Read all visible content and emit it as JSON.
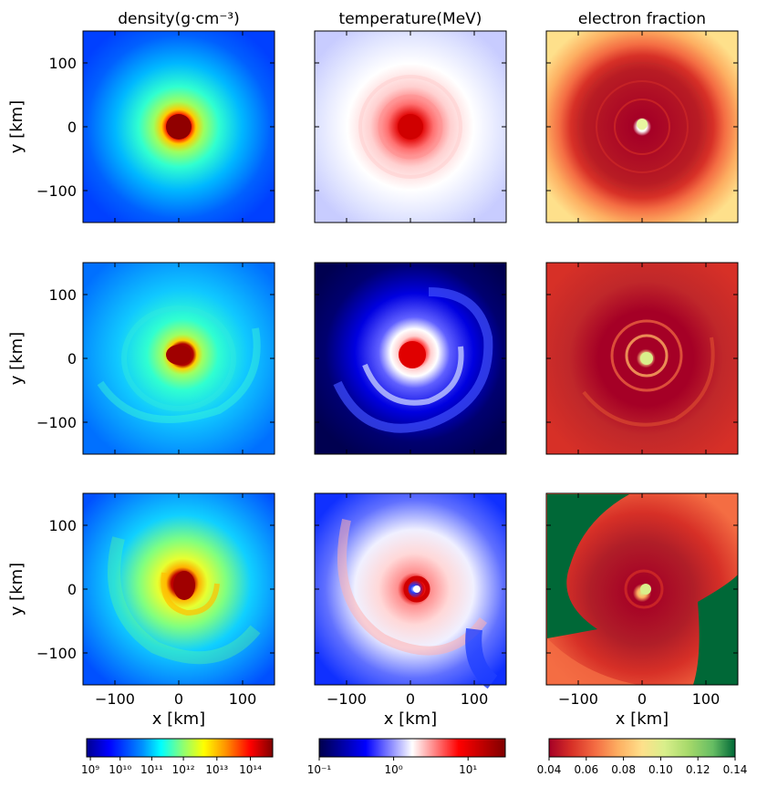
{
  "chart_data": {
    "type": "heatmap",
    "columns": [
      {
        "title": "density(g·cm⁻³)",
        "colorbar_ticks": [
          "10⁹",
          "10¹⁰",
          "10¹¹",
          "10¹²",
          "10¹³",
          "10¹⁴"
        ],
        "colorbar_scale": "log"
      },
      {
        "title": "temperature(MeV)",
        "colorbar_ticks": [
          "10⁻¹",
          "10⁰",
          "10¹"
        ],
        "colorbar_scale": "log"
      },
      {
        "title": "electron fraction",
        "colorbar_ticks": [
          "0.04",
          "0.06",
          "0.08",
          "0.10",
          "0.12",
          "0.14"
        ],
        "colorbar_scale": "linear"
      }
    ],
    "rows": 3,
    "xlabel": "x [km]",
    "ylabel": "y [km]",
    "xlim": [
      -150,
      150
    ],
    "ylim": [
      -150,
      150
    ],
    "x_ticks": [
      "−100",
      "0",
      "100"
    ],
    "y_ticks": [
      "100",
      "0",
      "−100"
    ]
  },
  "colors": {
    "density": [
      "#000090",
      "#0000ff",
      "#0090ff",
      "#00ffff",
      "#90ff70",
      "#ffff00",
      "#ff9000",
      "#ff0000",
      "#800000"
    ],
    "temperature": [
      "#00004c",
      "#0000ff",
      "#ffffff",
      "#ff0000",
      "#800000"
    ],
    "electron_fraction": [
      "#a50026",
      "#d73027",
      "#f46d43",
      "#fdae61",
      "#fee08b",
      "#d9ef8b",
      "#a6d96a",
      "#66bd63",
      "#006837"
    ]
  }
}
